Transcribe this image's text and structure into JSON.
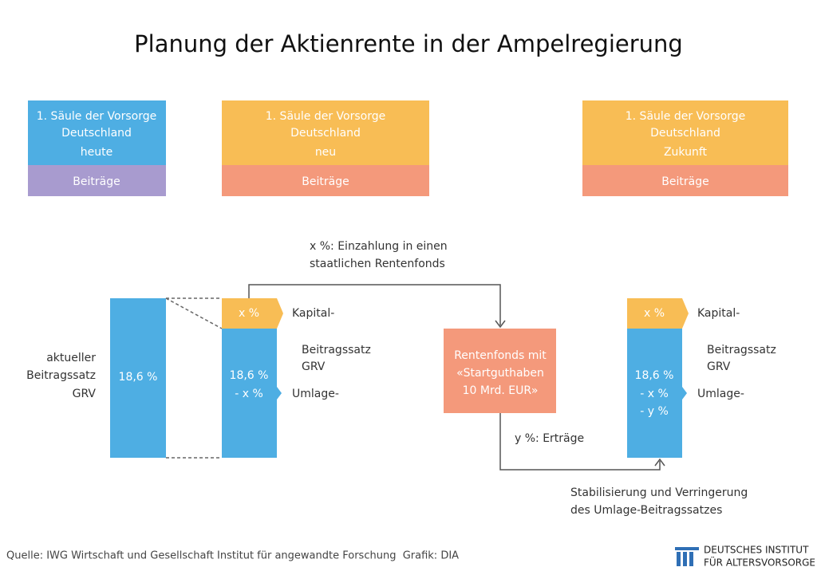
{
  "title": "Planung der Aktienrente in der Ampelregierung",
  "columns": [
    {
      "header": [
        "1. Säule der Vorsorge",
        "Deutschland",
        "heute"
      ],
      "footer": "Beiträge"
    },
    {
      "header": [
        "1. Säule der Vorsorge",
        "Deutschland",
        "neu"
      ],
      "footer": "Beiträge"
    },
    {
      "header": [
        "1. Säule der Vorsorge",
        "Deutschland",
        "Zukunft"
      ],
      "footer": "Beiträge"
    }
  ],
  "left": {
    "label": [
      "aktueller",
      "Beitragssatz",
      "GRV"
    ],
    "bar": "18,6 %"
  },
  "middle": {
    "top": "x %",
    "bottom": [
      "18,6 %",
      "- x %"
    ],
    "capital": "Kapital-",
    "rate": [
      "Beitragssatz",
      "GRV"
    ],
    "levy": "Umlage-"
  },
  "flow": {
    "inflow": [
      "x %: Einzahlung in einen",
      "staatlichen Rentenfonds"
    ],
    "fund": [
      "Rentenfonds mit",
      "«Startguthaben",
      "10 Mrd. EUR»"
    ],
    "returns": "y %: Erträge",
    "effect": [
      "Stabilisierung und Verringerung",
      "des Umlage-Beitragssatzes"
    ]
  },
  "right": {
    "top": "x %",
    "bottom": [
      "18,6 %",
      "- x %",
      "- y %"
    ],
    "capital": "Kapital-",
    "rate": [
      "Beitragssatz",
      "GRV"
    ],
    "levy": "Umlage-"
  },
  "footer": {
    "source": "Quelle: IWG Wirtschaft und Gesellschaft Institut für angewandte Forschung  Grafik: DIA",
    "logo": [
      "DEUTSCHES INSTITUT",
      "FÜR ALTERSVORSORGE"
    ]
  }
}
